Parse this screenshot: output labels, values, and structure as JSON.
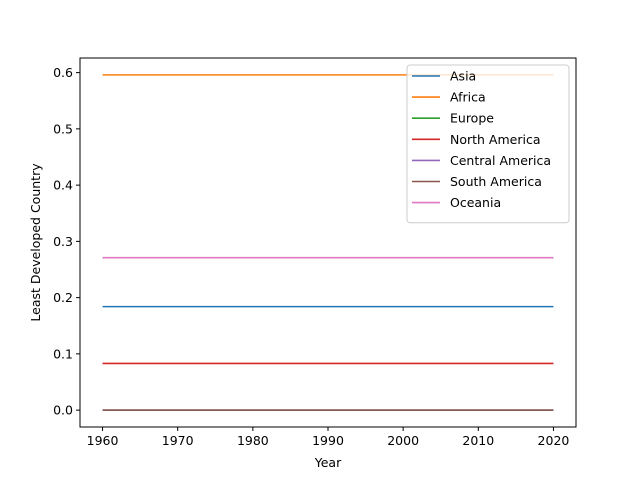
{
  "chart_data": {
    "type": "line",
    "title": "",
    "xlabel": "Year",
    "ylabel": "Least Developed Country",
    "x": [
      1960,
      2020
    ],
    "xlim": [
      1957,
      2023
    ],
    "ylim": [
      -0.03,
      0.626
    ],
    "xticks": [
      1960,
      1970,
      1980,
      1990,
      2000,
      2010,
      2020
    ],
    "yticks": [
      0.0,
      0.1,
      0.2,
      0.3,
      0.4,
      0.5,
      0.6
    ],
    "xtick_labels": [
      "1960",
      "1970",
      "1980",
      "1990",
      "2000",
      "2010",
      "2020"
    ],
    "ytick_labels": [
      "0.0",
      "0.1",
      "0.2",
      "0.3",
      "0.4",
      "0.5",
      "0.6"
    ],
    "grid": false,
    "legend_position": "top-right",
    "series": [
      {
        "name": "Asia",
        "values": [
          0.184,
          0.184
        ],
        "color": "#1f77b4"
      },
      {
        "name": "Africa",
        "values": [
          0.596,
          0.596
        ],
        "color": "#ff7f0e"
      },
      {
        "name": "Europe",
        "values": [
          0.0,
          0.0
        ],
        "color": "#2ca02c"
      },
      {
        "name": "North America",
        "values": [
          0.083,
          0.083
        ],
        "color": "#d62728"
      },
      {
        "name": "Central America",
        "values": [
          0.0,
          0.0
        ],
        "color": "#9467bd"
      },
      {
        "name": "South America",
        "values": [
          0.0,
          0.0
        ],
        "color": "#8c564b"
      },
      {
        "name": "Oceania",
        "values": [
          0.271,
          0.271
        ],
        "color": "#e377c2"
      }
    ]
  }
}
